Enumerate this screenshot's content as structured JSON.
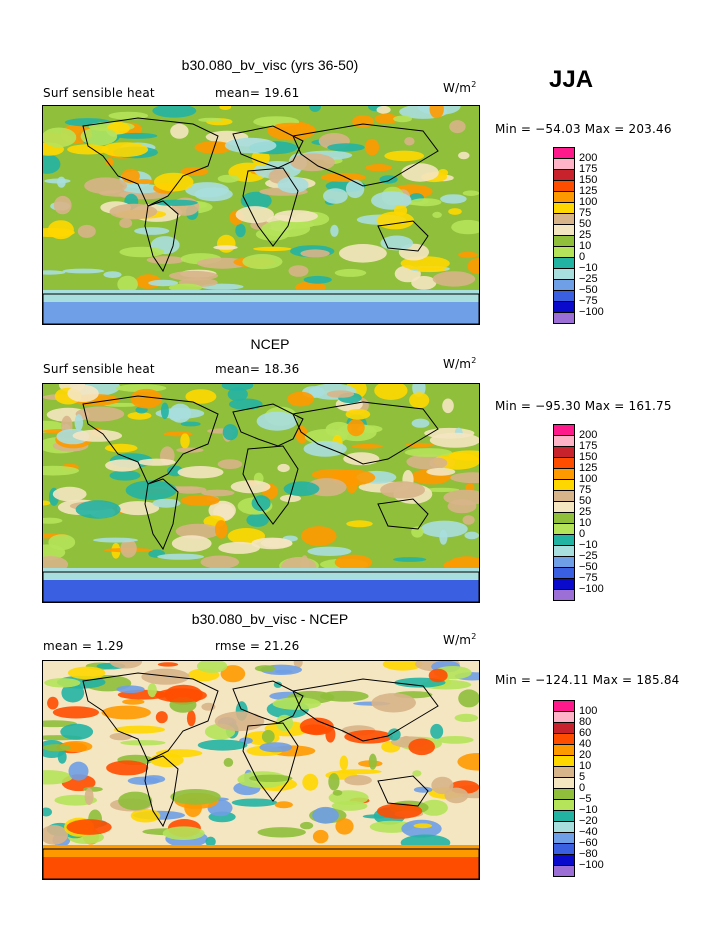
{
  "page": {
    "season": "JJA"
  },
  "chart_data": [
    {
      "type": "heatmap",
      "title": "b30.080_bv_visc (yrs 36-50)",
      "variable": "Surf sensible heat",
      "stat_left": "mean=  19.61",
      "stat_right": "",
      "units_base": "W/m",
      "units_exp": "2",
      "range_text": "Min = −54.03 Max = 203.46",
      "levels": [
        "200",
        "175",
        "150",
        "125",
        "100",
        "75",
        "50",
        "25",
        "10",
        "0",
        "−10",
        "−25",
        "−50",
        "−75",
        "−100"
      ],
      "colors": [
        "#ff1a8c",
        "#ffb3c6",
        "#c8232c",
        "#ff4d00",
        "#ff9900",
        "#ffd700",
        "#d8b48a",
        "#f5e6c2",
        "#8fbf3b",
        "#b5e35a",
        "#23b3a3",
        "#a8dede",
        "#6f9fe6",
        "#3a5fe0",
        "#0a0acc",
        "#9b6fd6"
      ],
      "min": -54.03,
      "max": 203.46
    },
    {
      "type": "heatmap",
      "title": "NCEP",
      "variable": "Surf sensible heat",
      "stat_left": "mean=  18.36",
      "stat_right": "",
      "units_base": "W/m",
      "units_exp": "2",
      "range_text": "Min = −95.30 Max = 161.75",
      "levels": [
        "200",
        "175",
        "150",
        "125",
        "100",
        "75",
        "50",
        "25",
        "10",
        "0",
        "−10",
        "−25",
        "−50",
        "−75",
        "−100"
      ],
      "colors": [
        "#ff1a8c",
        "#ffb3c6",
        "#c8232c",
        "#ff4d00",
        "#ff9900",
        "#ffd700",
        "#d8b48a",
        "#f5e6c2",
        "#8fbf3b",
        "#b5e35a",
        "#23b3a3",
        "#a8dede",
        "#6f9fe6",
        "#3a5fe0",
        "#0a0acc",
        "#9b6fd6"
      ],
      "min": -95.3,
      "max": 161.75
    },
    {
      "type": "heatmap",
      "title": "b30.080_bv_visc - NCEP",
      "variable": "mean =   1.29",
      "stat_left": "",
      "stat_right": "rmse =  21.26",
      "units_base": "W/m",
      "units_exp": "2",
      "range_text": "Min = −124.11 Max = 185.84",
      "levels": [
        "100",
        "80",
        "60",
        "40",
        "20",
        "10",
        "5",
        "0",
        "−5",
        "−10",
        "−20",
        "−40",
        "−60",
        "−80",
        "−100"
      ],
      "colors": [
        "#ff1a8c",
        "#ffb3c6",
        "#c8232c",
        "#ff4d00",
        "#ff9900",
        "#ffd700",
        "#d8b48a",
        "#f5e6c2",
        "#8fbf3b",
        "#b5e35a",
        "#23b3a3",
        "#a8dede",
        "#6f9fe6",
        "#3a5fe0",
        "#0a0acc",
        "#9b6fd6"
      ],
      "min": -124.11,
      "max": 185.84
    }
  ]
}
